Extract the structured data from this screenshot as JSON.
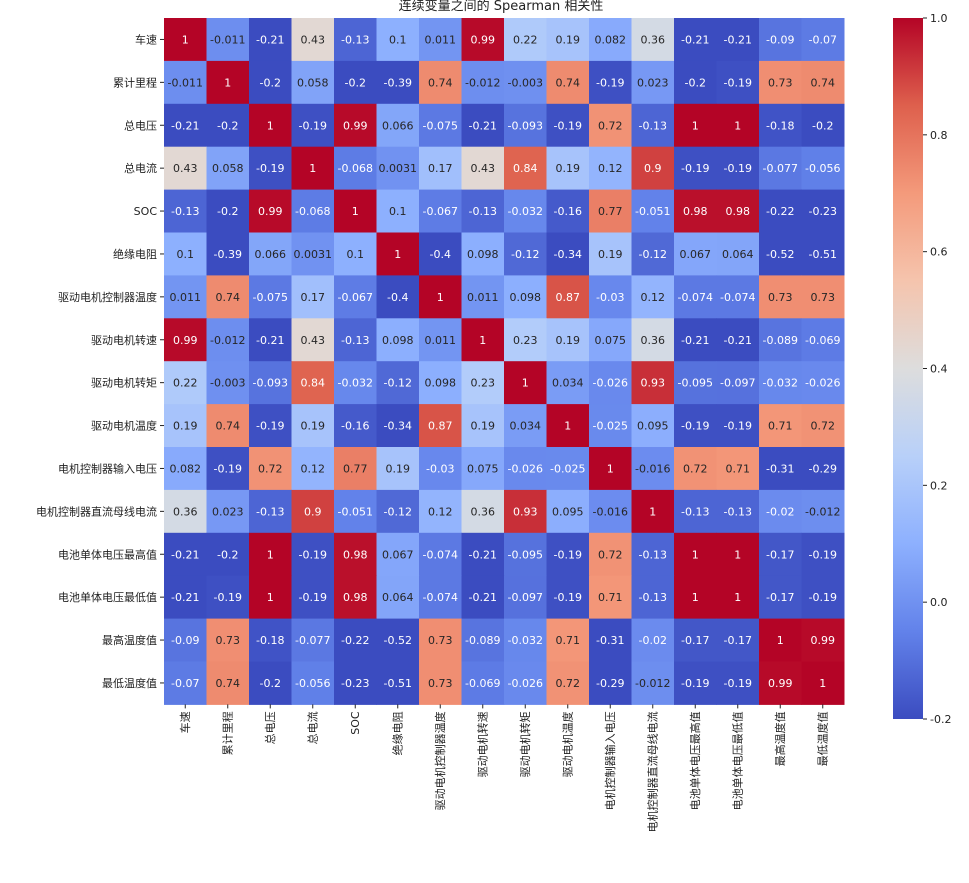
{
  "chart_data": {
    "type": "heatmap",
    "title": "连续变量之间的 Spearman 相关性",
    "labels": [
      "车速",
      "累计里程",
      "总电压",
      "总电流",
      "SOC",
      "绝缘电阻",
      "驱动电机控制器温度",
      "驱动电机转速",
      "驱动电机转矩",
      "驱动电机温度",
      "电机控制器输入电压",
      "电机控制器直流母线电流",
      "电池单体电压最高值",
      "电池单体电压最低值",
      "最高温度值",
      "最低温度值"
    ],
    "values": [
      [
        1,
        -0.011,
        -0.21,
        0.43,
        -0.13,
        0.1,
        0.011,
        0.99,
        0.22,
        0.19,
        0.082,
        0.36,
        -0.21,
        -0.21,
        -0.09,
        -0.07
      ],
      [
        -0.011,
        1,
        -0.2,
        0.058,
        -0.2,
        -0.39,
        0.74,
        -0.012,
        -0.003,
        0.74,
        -0.19,
        0.023,
        -0.2,
        -0.19,
        0.73,
        0.74
      ],
      [
        -0.21,
        -0.2,
        1,
        -0.19,
        0.99,
        0.066,
        -0.075,
        -0.21,
        -0.093,
        -0.19,
        0.72,
        -0.13,
        1,
        1,
        -0.18,
        -0.2
      ],
      [
        0.43,
        0.058,
        -0.19,
        1,
        -0.068,
        0.0031,
        0.17,
        0.43,
        0.84,
        0.19,
        0.12,
        0.9,
        -0.19,
        -0.19,
        -0.077,
        -0.056
      ],
      [
        -0.13,
        -0.2,
        0.99,
        -0.068,
        1,
        0.1,
        -0.067,
        -0.13,
        -0.032,
        -0.16,
        0.77,
        -0.051,
        0.98,
        0.98,
        -0.22,
        -0.23
      ],
      [
        0.1,
        -0.39,
        0.066,
        0.0031,
        0.1,
        1,
        -0.4,
        0.098,
        -0.12,
        -0.34,
        0.19,
        -0.12,
        0.067,
        0.064,
        -0.52,
        -0.51
      ],
      [
        0.011,
        0.74,
        -0.075,
        0.17,
        -0.067,
        -0.4,
        1,
        0.011,
        0.098,
        0.87,
        -0.03,
        0.12,
        -0.074,
        -0.074,
        0.73,
        0.73
      ],
      [
        0.99,
        -0.012,
        -0.21,
        0.43,
        -0.13,
        0.098,
        0.011,
        1,
        0.23,
        0.19,
        0.075,
        0.36,
        -0.21,
        -0.21,
        -0.089,
        -0.069
      ],
      [
        0.22,
        -0.003,
        -0.093,
        0.84,
        -0.032,
        -0.12,
        0.098,
        0.23,
        1,
        0.034,
        -0.026,
        0.93,
        -0.095,
        -0.097,
        -0.032,
        -0.026
      ],
      [
        0.19,
        0.74,
        -0.19,
        0.19,
        -0.16,
        -0.34,
        0.87,
        0.19,
        0.034,
        1,
        -0.025,
        0.095,
        -0.19,
        -0.19,
        0.71,
        0.72
      ],
      [
        0.082,
        -0.19,
        0.72,
        0.12,
        0.77,
        0.19,
        -0.03,
        0.075,
        -0.026,
        -0.025,
        1,
        -0.016,
        0.72,
        0.71,
        -0.31,
        -0.29
      ],
      [
        0.36,
        0.023,
        -0.13,
        0.9,
        -0.051,
        -0.12,
        0.12,
        0.36,
        0.93,
        0.095,
        -0.016,
        1,
        -0.13,
        -0.13,
        -0.02,
        -0.012
      ],
      [
        -0.21,
        -0.2,
        1,
        -0.19,
        0.98,
        0.067,
        -0.074,
        -0.21,
        -0.095,
        -0.19,
        0.72,
        -0.13,
        1,
        1,
        -0.17,
        -0.19
      ],
      [
        -0.21,
        -0.19,
        1,
        -0.19,
        0.98,
        0.064,
        -0.074,
        -0.21,
        -0.097,
        -0.19,
        0.71,
        -0.13,
        1,
        1,
        -0.17,
        -0.19
      ],
      [
        -0.09,
        0.73,
        -0.18,
        -0.077,
        -0.22,
        -0.52,
        0.73,
        -0.089,
        -0.032,
        0.71,
        -0.31,
        -0.02,
        -0.17,
        -0.17,
        1,
        0.99
      ],
      [
        -0.07,
        0.74,
        -0.2,
        -0.056,
        -0.23,
        -0.51,
        0.73,
        -0.069,
        -0.026,
        0.72,
        -0.29,
        -0.012,
        -0.19,
        -0.19,
        0.99,
        1
      ]
    ],
    "colormap": "coolwarm",
    "vmin": -0.2,
    "vmax": 1.0,
    "colorbar_ticks": [
      1.0,
      0.8,
      0.6,
      0.4,
      0.2,
      0.0,
      -0.2
    ],
    "colorbar_tick_labels": [
      "1.0",
      "0.8",
      "0.6",
      "0.4",
      "0.2",
      "0.0",
      "-0.2"
    ]
  }
}
